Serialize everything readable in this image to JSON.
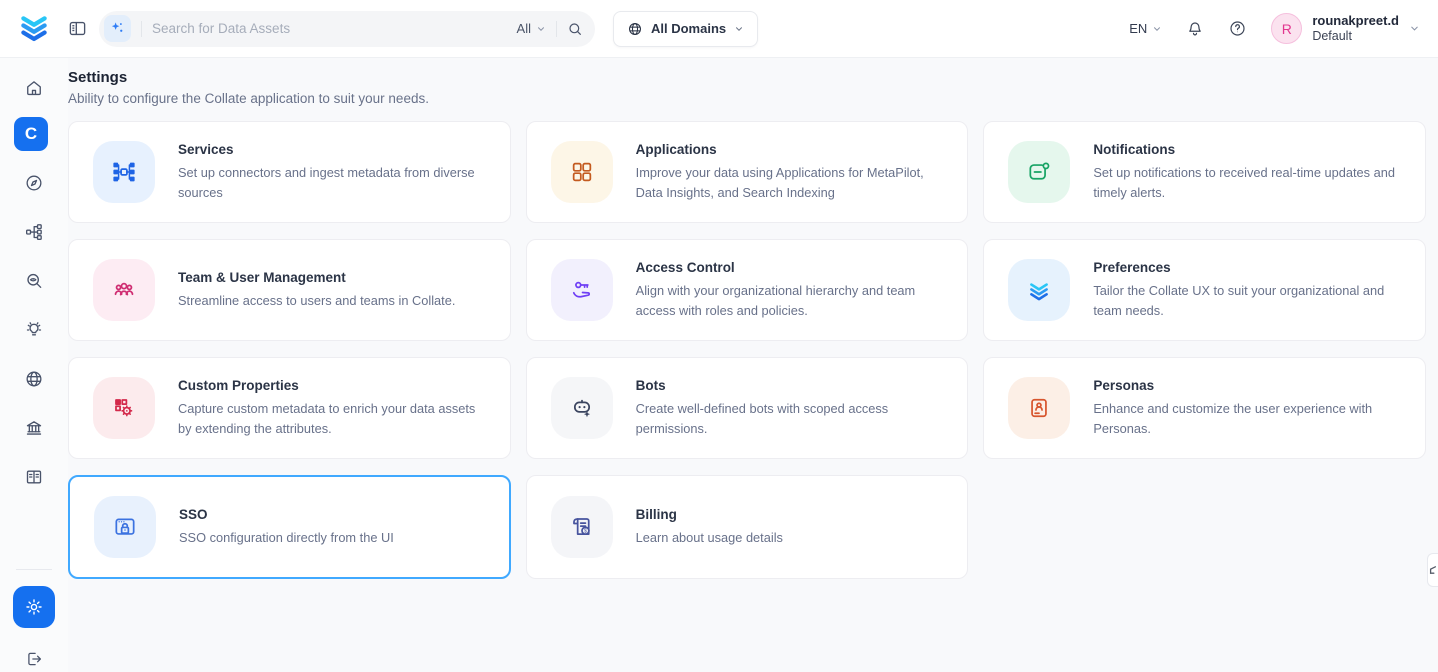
{
  "brand": {
    "logo_icon": "collate-logo",
    "app_letter": "C"
  },
  "topbar": {
    "search": {
      "placeholder": "Search for Data Assets",
      "scope": "All"
    },
    "domains": {
      "label": "All Domains"
    },
    "language": {
      "label": "EN"
    },
    "user": {
      "initial": "R",
      "name": "rounakpreet.d",
      "team": "Default"
    }
  },
  "page": {
    "title": "Settings",
    "subtitle": "Ability to configure the Collate application to suit your needs."
  },
  "sidebar": {
    "items": [
      {
        "id": "home",
        "icon": "home-icon"
      },
      {
        "id": "metapilot",
        "icon": "collate-app-icon",
        "active": true
      },
      {
        "id": "explore",
        "icon": "compass-icon"
      },
      {
        "id": "lineage",
        "icon": "flow-icon"
      },
      {
        "id": "observability",
        "icon": "magnifier-eye-icon"
      },
      {
        "id": "insights",
        "icon": "lightbulb-icon"
      },
      {
        "id": "domains",
        "icon": "globe-icon"
      },
      {
        "id": "govern",
        "icon": "bank-icon"
      },
      {
        "id": "glossary",
        "icon": "book-icon"
      }
    ],
    "settings_icon": "gear-icon",
    "logout_icon": "logout-icon"
  },
  "cards": [
    {
      "slug": "services",
      "title": "Services",
      "description": "Set up connectors and ingest metadata from diverse sources",
      "icon": "services-network-icon",
      "tile_bg": "#e7f1fe",
      "icon_color": "#1f64e5",
      "highlighted": false
    },
    {
      "slug": "applications",
      "title": "Applications",
      "description": "Improve your data using Applications for MetaPilot, Data Insights, and Search Indexing",
      "icon": "applications-grid-icon",
      "tile_bg": "#fdf6e7",
      "icon_color": "#c45a1f",
      "highlighted": false
    },
    {
      "slug": "notifications",
      "title": "Notifications",
      "description": "Set up notifications to received real-time updates and timely alerts.",
      "icon": "notifications-chat-icon",
      "tile_bg": "#e5f7ed",
      "icon_color": "#17a364",
      "highlighted": false
    },
    {
      "slug": "team-user-management",
      "title": "Team & User Management",
      "description": "Streamline access to users and teams in Collate.",
      "icon": "team-users-icon",
      "tile_bg": "#fdecf3",
      "icon_color": "#cf2d71",
      "highlighted": false
    },
    {
      "slug": "access-control",
      "title": "Access Control",
      "description": "Align with your organizational hierarchy and team access with roles and policies.",
      "icon": "key-hand-icon",
      "tile_bg": "#f2f0fd",
      "icon_color": "#6f3ff5",
      "highlighted": false
    },
    {
      "slug": "preferences",
      "title": "Preferences",
      "description": "Tailor the Collate UX to suit your organizational and team needs.",
      "icon": "collate-layers-icon",
      "tile_bg": "#e6f2fd",
      "icon_color": "#2586f2",
      "highlighted": false
    },
    {
      "slug": "custom-properties",
      "title": "Custom Properties",
      "description": "Capture custom metadata to enrich your data assets by extending the attributes.",
      "icon": "grid-gear-icon",
      "tile_bg": "#fcebed",
      "icon_color": "#d3294b",
      "highlighted": false
    },
    {
      "slug": "bots",
      "title": "Bots",
      "description": "Create well-defined bots with scoped access permissions.",
      "icon": "bot-icon",
      "tile_bg": "#f5f6f8",
      "icon_color": "#3a445f",
      "highlighted": false
    },
    {
      "slug": "personas",
      "title": "Personas",
      "description": "Enhance and customize the user experience with Personas.",
      "icon": "persona-card-icon",
      "tile_bg": "#fcefe6",
      "icon_color": "#d7552e",
      "highlighted": false
    },
    {
      "slug": "sso",
      "title": "SSO",
      "description": "SSO configuration directly from the UI",
      "icon": "browser-lock-icon",
      "tile_bg": "#e8f1fd",
      "icon_color": "#3b72e0",
      "highlighted": true
    },
    {
      "slug": "billing",
      "title": "Billing",
      "description": "Learn about usage details",
      "icon": "billing-receipt-icon",
      "tile_bg": "#f4f5f8",
      "icon_color": "#47549e",
      "highlighted": false
    }
  ],
  "colors": {
    "accent": "#1570ef",
    "highlight_border": "#40a9ff"
  }
}
